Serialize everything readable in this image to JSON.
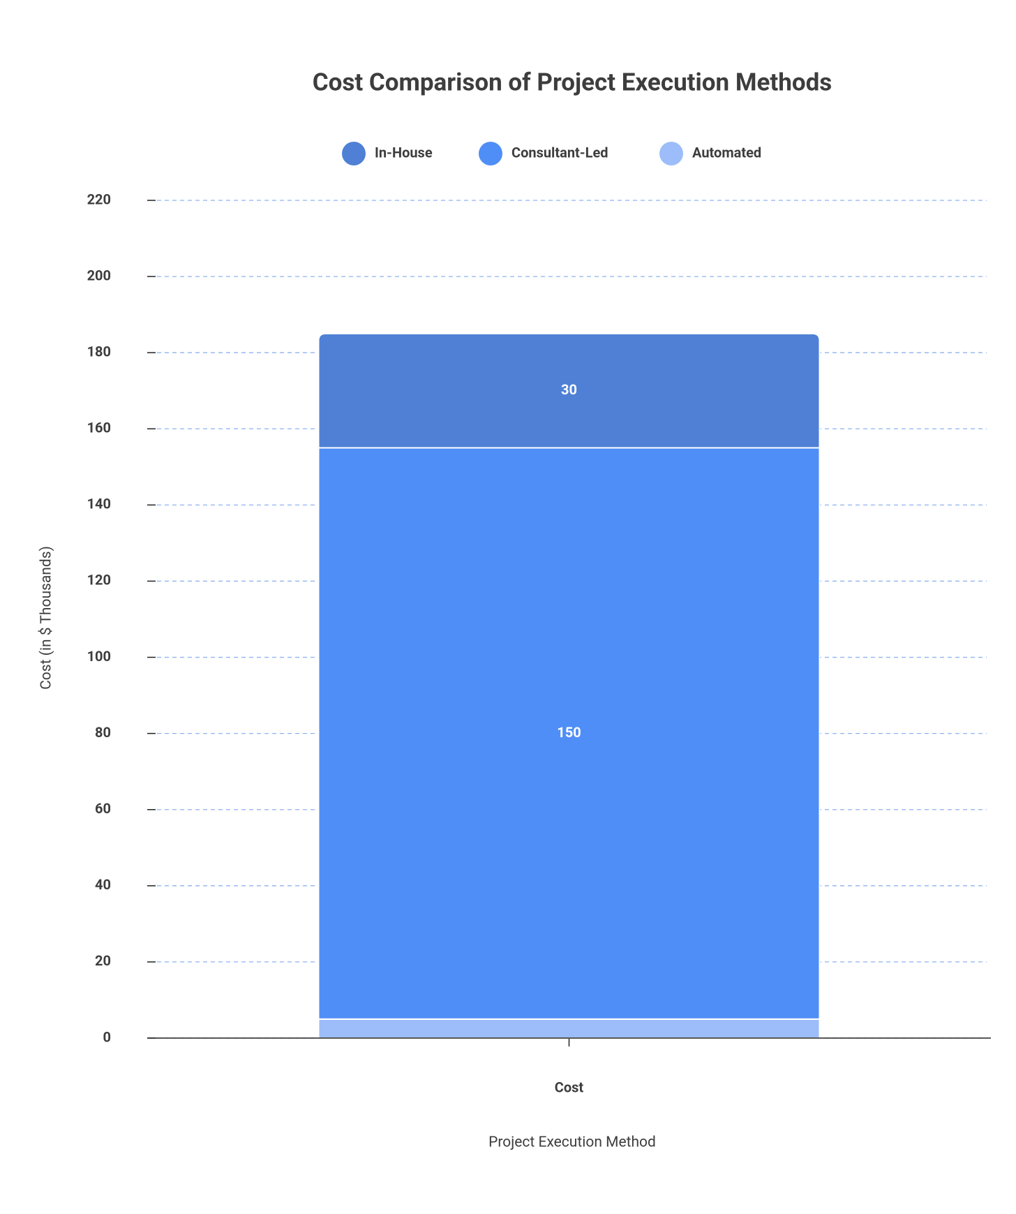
{
  "chart_data": {
    "type": "bar",
    "stacked": true,
    "title": "Cost Comparison of Project Execution Methods",
    "x_label": "Project Execution Method",
    "y_label": "Cost (in $ Thousands)",
    "categories": [
      "Cost"
    ],
    "series": [
      {
        "name": "In-House",
        "color": "#4f80d6",
        "values": [
          30
        ]
      },
      {
        "name": "Consultant-Led",
        "color": "#4f8ef6",
        "values": [
          150
        ]
      },
      {
        "name": "Automated",
        "color": "#9cbdf9",
        "values": [
          5
        ]
      }
    ],
    "ylim": [
      0,
      220
    ],
    "yticks": [
      0,
      20,
      40,
      60,
      80,
      100,
      120,
      140,
      160,
      180,
      200,
      220
    ],
    "grid": true,
    "legend": "top"
  }
}
